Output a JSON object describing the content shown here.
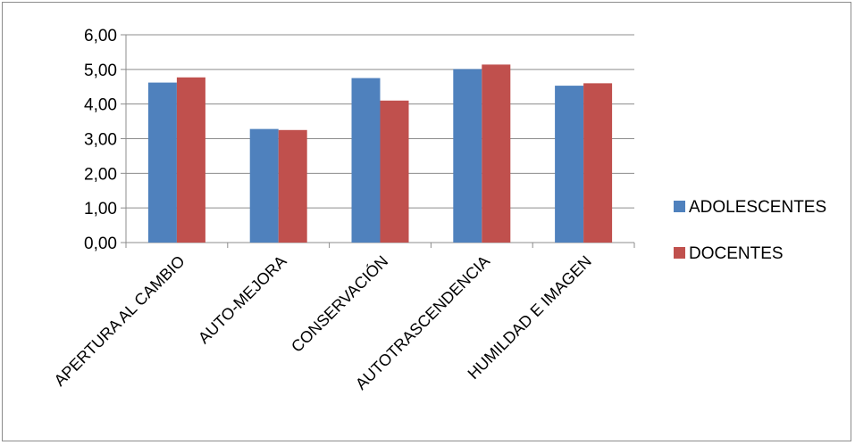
{
  "chart_data": {
    "type": "bar",
    "title": "",
    "xlabel": "",
    "ylabel": "",
    "categories": [
      "APERTURA AL CAMBIO",
      "AUTO-MEJORA",
      "CONSERVACIÓN",
      "AUTOTRASCENDENCIA",
      "HUMILDAD E IMAGEN"
    ],
    "series": [
      {
        "name": "ADOLESCENTES",
        "color": "#4f81bd",
        "values": [
          4.62,
          3.28,
          4.75,
          5.01,
          4.53
        ]
      },
      {
        "name": "DOCENTES",
        "color": "#c0504d",
        "values": [
          4.77,
          3.25,
          4.1,
          5.14,
          4.6
        ]
      }
    ],
    "ylim": [
      0,
      6
    ],
    "yticks": [
      0,
      1,
      2,
      3,
      4,
      5,
      6
    ],
    "ytick_labels": [
      "0,00",
      "1,00",
      "2,00",
      "3,00",
      "4,00",
      "5,00",
      "6,00"
    ],
    "grid": true,
    "legend": "right"
  }
}
